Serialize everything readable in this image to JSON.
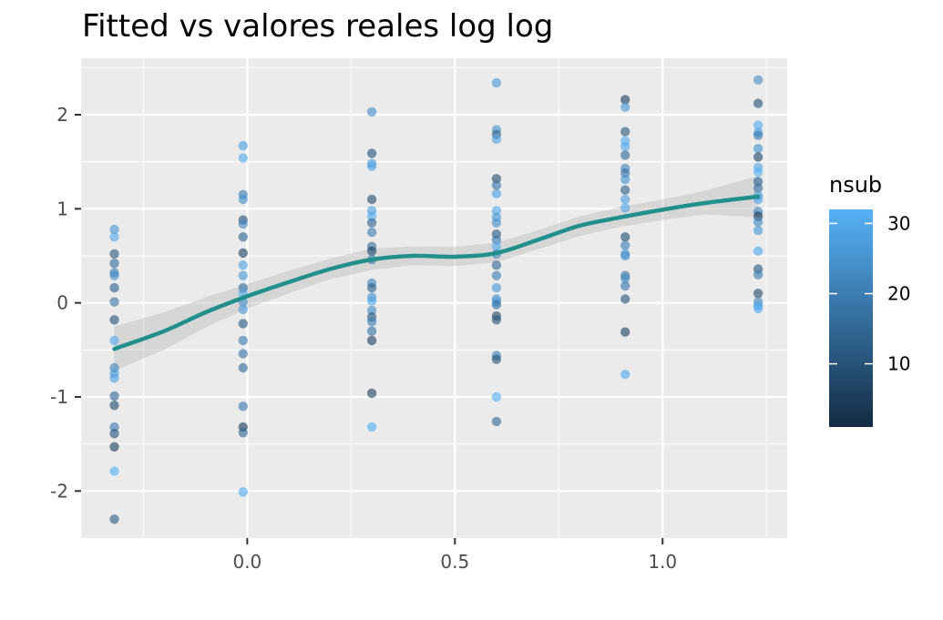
{
  "chart_data": {
    "type": "scatter",
    "title": "Fitted vs valores reales log log",
    "xlabel": "",
    "ylabel": "",
    "xlim": [
      -0.4,
      1.3
    ],
    "ylim": [
      -2.5,
      2.6
    ],
    "x_ticks": [
      0.0,
      0.5,
      1.0
    ],
    "x_tick_labels": [
      "0.0",
      "0.5",
      "1.0"
    ],
    "y_ticks": [
      -2,
      -1,
      0,
      1,
      2
    ],
    "y_tick_labels": [
      "-2",
      "-1",
      "0",
      "1",
      "2"
    ],
    "grid": true,
    "legend": {
      "title": "nsub",
      "position": "right",
      "type": "colorbar",
      "range": [
        1,
        32
      ],
      "ticks": [
        10,
        20,
        30
      ],
      "tick_labels": [
        "10",
        "20",
        "30"
      ],
      "color_low": "#132b43",
      "color_high": "#56b1f7"
    },
    "points": [
      {
        "x": -0.32,
        "y": 0.78,
        "nsub": 26
      },
      {
        "x": -0.32,
        "y": 0.7,
        "nsub": 30
      },
      {
        "x": -0.32,
        "y": 0.52,
        "nsub": 12
      },
      {
        "x": -0.32,
        "y": 0.42,
        "nsub": 16
      },
      {
        "x": -0.32,
        "y": 0.32,
        "nsub": 20
      },
      {
        "x": -0.32,
        "y": 0.29,
        "nsub": 24
      },
      {
        "x": -0.32,
        "y": 0.16,
        "nsub": 14
      },
      {
        "x": -0.32,
        "y": 0.01,
        "nsub": 18
      },
      {
        "x": -0.32,
        "y": -0.18,
        "nsub": 10
      },
      {
        "x": -0.32,
        "y": -0.4,
        "nsub": 31
      },
      {
        "x": -0.32,
        "y": -0.69,
        "nsub": 22
      },
      {
        "x": -0.32,
        "y": -0.75,
        "nsub": 27
      },
      {
        "x": -0.32,
        "y": -0.8,
        "nsub": 29
      },
      {
        "x": -0.32,
        "y": -0.99,
        "nsub": 15
      },
      {
        "x": -0.32,
        "y": -1.09,
        "nsub": 8
      },
      {
        "x": -0.32,
        "y": -1.32,
        "nsub": 19
      },
      {
        "x": -0.32,
        "y": -1.39,
        "nsub": 11
      },
      {
        "x": -0.32,
        "y": -1.53,
        "nsub": 6
      },
      {
        "x": -0.32,
        "y": -1.79,
        "nsub": 32
      },
      {
        "x": -0.32,
        "y": -2.3,
        "nsub": 13
      },
      {
        "x": -0.01,
        "y": 1.67,
        "nsub": 28
      },
      {
        "x": -0.01,
        "y": 1.54,
        "nsub": 31
      },
      {
        "x": -0.01,
        "y": 1.15,
        "nsub": 21
      },
      {
        "x": -0.01,
        "y": 1.1,
        "nsub": 25
      },
      {
        "x": -0.01,
        "y": 0.88,
        "nsub": 9
      },
      {
        "x": -0.01,
        "y": 0.84,
        "nsub": 23
      },
      {
        "x": -0.01,
        "y": 0.7,
        "nsub": 14
      },
      {
        "x": -0.01,
        "y": 0.53,
        "nsub": 7
      },
      {
        "x": -0.01,
        "y": 0.4,
        "nsub": 29
      },
      {
        "x": -0.01,
        "y": 0.29,
        "nsub": 26
      },
      {
        "x": -0.01,
        "y": 0.16,
        "nsub": 17
      },
      {
        "x": -0.01,
        "y": 0.1,
        "nsub": 30
      },
      {
        "x": -0.01,
        "y": 0.01,
        "nsub": 24
      },
      {
        "x": -0.01,
        "y": -0.07,
        "nsub": 27
      },
      {
        "x": -0.01,
        "y": -0.22,
        "nsub": 12
      },
      {
        "x": -0.01,
        "y": -0.4,
        "nsub": 20
      },
      {
        "x": -0.01,
        "y": -0.54,
        "nsub": 18
      },
      {
        "x": -0.01,
        "y": -0.69,
        "nsub": 16
      },
      {
        "x": -0.01,
        "y": -1.1,
        "nsub": 19
      },
      {
        "x": -0.01,
        "y": -1.32,
        "nsub": 5
      },
      {
        "x": -0.01,
        "y": -1.38,
        "nsub": 15
      },
      {
        "x": -0.01,
        "y": -2.01,
        "nsub": 31
      },
      {
        "x": 0.3,
        "y": 2.03,
        "nsub": 24
      },
      {
        "x": 0.3,
        "y": 1.59,
        "nsub": 11
      },
      {
        "x": 0.3,
        "y": 1.48,
        "nsub": 27
      },
      {
        "x": 0.3,
        "y": 1.45,
        "nsub": 29
      },
      {
        "x": 0.3,
        "y": 1.1,
        "nsub": 9
      },
      {
        "x": 0.3,
        "y": 0.98,
        "nsub": 28
      },
      {
        "x": 0.3,
        "y": 0.92,
        "nsub": 31
      },
      {
        "x": 0.3,
        "y": 0.85,
        "nsub": 14
      },
      {
        "x": 0.3,
        "y": 0.75,
        "nsub": 21
      },
      {
        "x": 0.3,
        "y": 0.6,
        "nsub": 17
      },
      {
        "x": 0.3,
        "y": 0.55,
        "nsub": 8
      },
      {
        "x": 0.3,
        "y": 0.46,
        "nsub": 19
      },
      {
        "x": 0.3,
        "y": 0.21,
        "nsub": 22
      },
      {
        "x": 0.3,
        "y": 0.16,
        "nsub": 13
      },
      {
        "x": 0.3,
        "y": 0.06,
        "nsub": 25
      },
      {
        "x": 0.3,
        "y": 0.02,
        "nsub": 30
      },
      {
        "x": 0.3,
        "y": -0.08,
        "nsub": 23
      },
      {
        "x": 0.3,
        "y": -0.15,
        "nsub": 12
      },
      {
        "x": 0.3,
        "y": -0.2,
        "nsub": 20
      },
      {
        "x": 0.3,
        "y": -0.3,
        "nsub": 18
      },
      {
        "x": 0.3,
        "y": -0.4,
        "nsub": 6
      },
      {
        "x": 0.3,
        "y": -0.96,
        "nsub": 7
      },
      {
        "x": 0.3,
        "y": -1.32,
        "nsub": 31
      },
      {
        "x": 0.6,
        "y": 2.34,
        "nsub": 26
      },
      {
        "x": 0.6,
        "y": 1.84,
        "nsub": 25
      },
      {
        "x": 0.6,
        "y": 1.79,
        "nsub": 14
      },
      {
        "x": 0.6,
        "y": 1.74,
        "nsub": 29
      },
      {
        "x": 0.6,
        "y": 1.32,
        "nsub": 9
      },
      {
        "x": 0.6,
        "y": 1.25,
        "nsub": 18
      },
      {
        "x": 0.6,
        "y": 1.16,
        "nsub": 28
      },
      {
        "x": 0.6,
        "y": 0.98,
        "nsub": 30
      },
      {
        "x": 0.6,
        "y": 0.91,
        "nsub": 26
      },
      {
        "x": 0.6,
        "y": 0.85,
        "nsub": 24
      },
      {
        "x": 0.6,
        "y": 0.73,
        "nsub": 12
      },
      {
        "x": 0.6,
        "y": 0.67,
        "nsub": 19
      },
      {
        "x": 0.6,
        "y": 0.6,
        "nsub": 31
      },
      {
        "x": 0.6,
        "y": 0.52,
        "nsub": 22
      },
      {
        "x": 0.6,
        "y": 0.4,
        "nsub": 15
      },
      {
        "x": 0.6,
        "y": 0.29,
        "nsub": 20
      },
      {
        "x": 0.6,
        "y": 0.16,
        "nsub": 27
      },
      {
        "x": 0.6,
        "y": 0.04,
        "nsub": 23
      },
      {
        "x": 0.6,
        "y": 0.01,
        "nsub": 28
      },
      {
        "x": 0.6,
        "y": -0.02,
        "nsub": 17
      },
      {
        "x": 0.6,
        "y": -0.14,
        "nsub": 8
      },
      {
        "x": 0.6,
        "y": -0.18,
        "nsub": 11
      },
      {
        "x": 0.6,
        "y": -0.56,
        "nsub": 21
      },
      {
        "x": 0.6,
        "y": -0.6,
        "nsub": 10
      },
      {
        "x": 0.6,
        "y": -1.0,
        "nsub": 32
      },
      {
        "x": 0.6,
        "y": -1.26,
        "nsub": 16
      },
      {
        "x": 0.91,
        "y": 2.16,
        "nsub": 6
      },
      {
        "x": 0.91,
        "y": 2.08,
        "nsub": 27
      },
      {
        "x": 0.91,
        "y": 1.82,
        "nsub": 12
      },
      {
        "x": 0.91,
        "y": 1.72,
        "nsub": 31
      },
      {
        "x": 0.91,
        "y": 1.66,
        "nsub": 29
      },
      {
        "x": 0.91,
        "y": 1.57,
        "nsub": 16
      },
      {
        "x": 0.91,
        "y": 1.43,
        "nsub": 22
      },
      {
        "x": 0.91,
        "y": 1.38,
        "nsub": 18
      },
      {
        "x": 0.91,
        "y": 1.31,
        "nsub": 25
      },
      {
        "x": 0.91,
        "y": 1.2,
        "nsub": 13
      },
      {
        "x": 0.91,
        "y": 1.1,
        "nsub": 28
      },
      {
        "x": 0.91,
        "y": 1.01,
        "nsub": 30
      },
      {
        "x": 0.91,
        "y": 0.7,
        "nsub": 9
      },
      {
        "x": 0.91,
        "y": 0.61,
        "nsub": 21
      },
      {
        "x": 0.91,
        "y": 0.52,
        "nsub": 26
      },
      {
        "x": 0.91,
        "y": 0.5,
        "nsub": 24
      },
      {
        "x": 0.91,
        "y": 0.29,
        "nsub": 17
      },
      {
        "x": 0.91,
        "y": 0.26,
        "nsub": 23
      },
      {
        "x": 0.91,
        "y": 0.18,
        "nsub": 19
      },
      {
        "x": 0.91,
        "y": 0.04,
        "nsub": 11
      },
      {
        "x": 0.91,
        "y": -0.31,
        "nsub": 7
      },
      {
        "x": 0.91,
        "y": -0.76,
        "nsub": 31
      },
      {
        "x": 1.23,
        "y": 2.37,
        "nsub": 24
      },
      {
        "x": 1.23,
        "y": 2.12,
        "nsub": 10
      },
      {
        "x": 1.23,
        "y": 1.89,
        "nsub": 31
      },
      {
        "x": 1.23,
        "y": 1.81,
        "nsub": 28
      },
      {
        "x": 1.23,
        "y": 1.78,
        "nsub": 19
      },
      {
        "x": 1.23,
        "y": 1.64,
        "nsub": 25
      },
      {
        "x": 1.23,
        "y": 1.55,
        "nsub": 8
      },
      {
        "x": 1.23,
        "y": 1.44,
        "nsub": 30
      },
      {
        "x": 1.23,
        "y": 1.39,
        "nsub": 32
      },
      {
        "x": 1.23,
        "y": 1.29,
        "nsub": 13
      },
      {
        "x": 1.23,
        "y": 1.22,
        "nsub": 17
      },
      {
        "x": 1.23,
        "y": 1.14,
        "nsub": 27
      },
      {
        "x": 1.23,
        "y": 1.1,
        "nsub": 29
      },
      {
        "x": 1.23,
        "y": 0.97,
        "nsub": 21
      },
      {
        "x": 1.23,
        "y": 0.92,
        "nsub": 5
      },
      {
        "x": 1.23,
        "y": 0.86,
        "nsub": 23
      },
      {
        "x": 1.23,
        "y": 0.77,
        "nsub": 26
      },
      {
        "x": 1.23,
        "y": 0.55,
        "nsub": 31
      },
      {
        "x": 1.23,
        "y": 0.36,
        "nsub": 12
      },
      {
        "x": 1.23,
        "y": 0.3,
        "nsub": 20
      },
      {
        "x": 1.23,
        "y": 0.1,
        "nsub": 9
      },
      {
        "x": 1.23,
        "y": 0.01,
        "nsub": 22
      },
      {
        "x": 1.23,
        "y": -0.03,
        "nsub": 28
      },
      {
        "x": 1.23,
        "y": -0.06,
        "nsub": 31
      }
    ],
    "smooth": {
      "color": "#21908c",
      "band_color": "#bdbdbd",
      "x": [
        -0.32,
        -0.2,
        -0.1,
        0.0,
        0.1,
        0.2,
        0.3,
        0.4,
        0.5,
        0.6,
        0.7,
        0.8,
        0.9,
        1.0,
        1.1,
        1.23
      ],
      "y": [
        -0.49,
        -0.3,
        -0.1,
        0.07,
        0.22,
        0.36,
        0.46,
        0.5,
        0.49,
        0.53,
        0.67,
        0.82,
        0.91,
        0.99,
        1.06,
        1.13
      ],
      "lower": [
        -0.72,
        -0.5,
        -0.26,
        -0.06,
        0.1,
        0.25,
        0.35,
        0.4,
        0.39,
        0.43,
        0.57,
        0.71,
        0.81,
        0.88,
        0.94,
        0.91
      ],
      "upper": [
        -0.25,
        -0.1,
        0.06,
        0.2,
        0.34,
        0.47,
        0.58,
        0.6,
        0.6,
        0.64,
        0.77,
        0.92,
        1.02,
        1.1,
        1.19,
        1.35
      ]
    }
  }
}
